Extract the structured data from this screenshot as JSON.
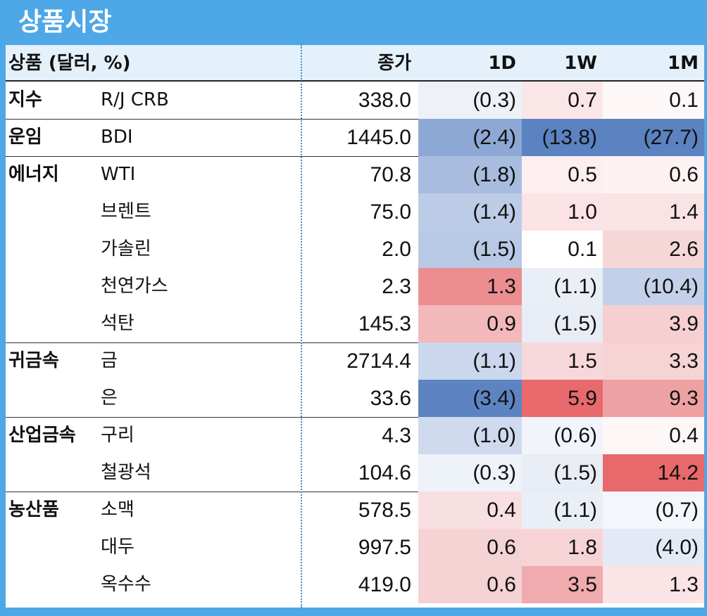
{
  "title": "상품시장",
  "header": {
    "product": "상품 (달러, %)",
    "close": "종가",
    "d1": "1D",
    "w1": "1W",
    "m1": "1M"
  },
  "colors": {
    "frame": "#4ea7e6",
    "header_bg": "#e4f1fb",
    "neg_scale": "#5d85c2",
    "pos_scale": "#e8696b"
  },
  "rows": [
    {
      "cat": "지수",
      "name": "R/J CRB",
      "close": "338.0",
      "d1": "(0.3)",
      "w1": "0.7",
      "m1": "0.1",
      "d1_bg": "#eef1f8",
      "w1_bg": "#fbe6e7",
      "m1_bg": "#fdf7f7"
    },
    {
      "cat": "운임",
      "name": "BDI",
      "close": "1445.0",
      "d1": "(2.4)",
      "w1": "(13.8)",
      "m1": "(27.7)",
      "d1_bg": "#8da8d4",
      "w1_bg": "#5b82c1",
      "m1_bg": "#5b82c1"
    },
    {
      "cat": "에너지",
      "name": "WTI",
      "close": "70.8",
      "d1": "(1.8)",
      "w1": "0.5",
      "m1": "0.6",
      "d1_bg": "#a7bcdf",
      "w1_bg": "#fdeef0",
      "m1_bg": "#fdf2f3"
    },
    {
      "cat": "",
      "name": "브렌트",
      "close": "75.0",
      "d1": "(1.4)",
      "w1": "1.0",
      "m1": "1.4",
      "d1_bg": "#bccce6",
      "w1_bg": "#fbe2e4",
      "m1_bg": "#f9e3e4"
    },
    {
      "cat": "",
      "name": "가솔린",
      "close": "2.0",
      "d1": "(1.5)",
      "w1": "0.1",
      "m1": "2.6",
      "d1_bg": "#b8c9e5",
      "w1_bg": "#ffffff",
      "m1_bg": "#f6d7d8"
    },
    {
      "cat": "",
      "name": "천연가스",
      "close": "2.3",
      "d1": "1.3",
      "w1": "(1.1)",
      "m1": "(10.4)",
      "d1_bg": "#ec8e90",
      "w1_bg": "#eaeff7",
      "m1_bg": "#c2d1e9"
    },
    {
      "cat": "",
      "name": "석탄",
      "close": "145.3",
      "d1": "0.9",
      "w1": "(1.5)",
      "m1": "3.9",
      "d1_bg": "#f2b8ba",
      "w1_bg": "#e7ecf5",
      "m1_bg": "#f5cfd1"
    },
    {
      "cat": "귀금속",
      "name": "금",
      "close": "2714.4",
      "d1": "(1.1)",
      "w1": "1.5",
      "m1": "3.3",
      "d1_bg": "#cbd7ec",
      "w1_bg": "#f7d8da",
      "m1_bg": "#f6d3d5"
    },
    {
      "cat": "",
      "name": "은",
      "close": "33.6",
      "d1": "(3.4)",
      "w1": "5.9",
      "m1": "9.3",
      "d1_bg": "#5d84c2",
      "w1_bg": "#e96a6c",
      "m1_bg": "#eea1a3"
    },
    {
      "cat": "산업금속",
      "name": "구리",
      "close": "4.3",
      "d1": "(1.0)",
      "w1": "(0.6)",
      "m1": "0.4",
      "d1_bg": "#cfdaee",
      "w1_bg": "#f1f4fa",
      "m1_bg": "#fdf7f8"
    },
    {
      "cat": "",
      "name": "철광석",
      "close": "104.6",
      "d1": "(0.3)",
      "w1": "(1.5)",
      "m1": "14.2",
      "d1_bg": "#eef2f9",
      "w1_bg": "#e7ecf5",
      "m1_bg": "#e8696b"
    },
    {
      "cat": "농산품",
      "name": "소맥",
      "close": "578.5",
      "d1": "0.4",
      "w1": "(1.1)",
      "m1": "(0.7)",
      "d1_bg": "#f8dfe1",
      "w1_bg": "#eaeff7",
      "m1_bg": "#f3f6fb"
    },
    {
      "cat": "",
      "name": "대두",
      "close": "997.5",
      "d1": "0.6",
      "w1": "1.8",
      "m1": "(4.0)",
      "d1_bg": "#f5d2d4",
      "w1_bg": "#f6d4d6",
      "m1_bg": "#e4eaf5"
    },
    {
      "cat": "",
      "name": "옥수수",
      "close": "419.0",
      "d1": "0.6",
      "w1": "3.5",
      "m1": "1.3",
      "d1_bg": "#f5d2d4",
      "w1_bg": "#efabad",
      "m1_bg": "#fae4e5"
    }
  ]
}
